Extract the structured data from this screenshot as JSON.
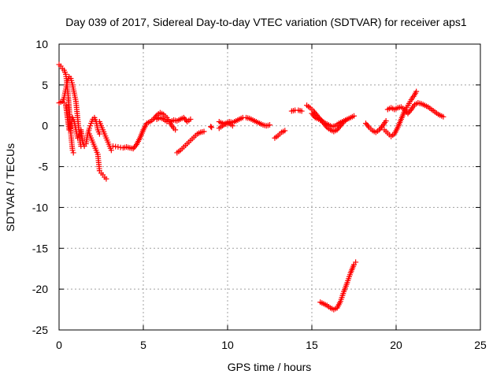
{
  "chart_data": {
    "type": "scatter",
    "title": "Day 039 of 2017, Sidereal Day-to-day VTEC variation (SDTVAR) for receiver aps1",
    "xlabel": "GPS time / hours",
    "ylabel": "SDTVAR / TECUs",
    "xlim": [
      0,
      25
    ],
    "ylim": [
      -25,
      10
    ],
    "xticks": [
      0,
      5,
      10,
      15,
      20,
      25
    ],
    "yticks": [
      10,
      5,
      0,
      -5,
      -10,
      -15,
      -20,
      -25
    ],
    "xtick_labels": [
      "0",
      "5",
      "10",
      "15",
      "20",
      "25"
    ],
    "ytick_labels": [
      "10",
      "5",
      "0",
      "-5",
      "-10",
      "-15",
      "-20",
      "-25"
    ],
    "grid": true,
    "marker": "plus",
    "color": "#ff0000",
    "series": [
      {
        "name": "aps1",
        "segments": [
          [
            [
              0.0,
              7.5
            ],
            [
              0.1,
              7.3
            ],
            [
              0.2,
              7.0
            ],
            [
              0.3,
              6.8
            ],
            [
              0.4,
              6.3
            ],
            [
              0.45,
              5.5
            ],
            [
              0.5,
              4.5
            ],
            [
              0.55,
              3.5
            ],
            [
              0.6,
              2.0
            ],
            [
              0.65,
              0.5
            ],
            [
              0.7,
              -1.0
            ],
            [
              0.75,
              -2.0
            ],
            [
              0.8,
              -3.0
            ],
            [
              0.85,
              -3.3
            ]
          ],
          [
            [
              0.0,
              2.8
            ],
            [
              0.1,
              2.9
            ],
            [
              0.2,
              3.0
            ],
            [
              0.3,
              3.5
            ],
            [
              0.4,
              4.5
            ],
            [
              0.5,
              5.5
            ],
            [
              0.6,
              6.0
            ],
            [
              0.7,
              5.8
            ],
            [
              0.8,
              5.0
            ],
            [
              0.9,
              4.0
            ],
            [
              1.0,
              3.0
            ],
            [
              1.05,
              2.0
            ],
            [
              1.1,
              1.0
            ],
            [
              1.15,
              0.0
            ],
            [
              1.2,
              -1.0
            ],
            [
              1.25,
              -2.0
            ],
            [
              1.3,
              -2.5
            ]
          ],
          [
            [
              0.3,
              2.8
            ],
            [
              0.4,
              2.5
            ],
            [
              0.5,
              1.0
            ],
            [
              0.6,
              -0.5
            ],
            [
              0.7,
              0.0
            ],
            [
              0.8,
              1.0
            ],
            [
              0.9,
              0.5
            ],
            [
              1.0,
              -0.5
            ],
            [
              1.1,
              -1.5
            ],
            [
              1.2,
              -1.0
            ],
            [
              1.3,
              -0.5
            ],
            [
              1.4,
              -2.0
            ],
            [
              1.5,
              -2.5
            ],
            [
              1.6,
              -2.2
            ],
            [
              1.7,
              -1.0
            ],
            [
              1.8,
              -0.3
            ],
            [
              1.9,
              0.3
            ],
            [
              2.0,
              0.8
            ],
            [
              2.1,
              1.0
            ],
            [
              2.2,
              0.5
            ],
            [
              2.3,
              -0.5
            ],
            [
              2.4,
              -1.0
            ]
          ],
          [
            [
              1.8,
              -1.0
            ],
            [
              1.9,
              -1.5
            ],
            [
              2.0,
              -2.0
            ],
            [
              2.1,
              -2.5
            ],
            [
              2.2,
              -3.0
            ],
            [
              2.3,
              -3.5
            ],
            [
              2.35,
              -4.5
            ],
            [
              2.4,
              -5.5
            ],
            [
              2.5,
              -5.8
            ],
            [
              2.6,
              -6.0
            ],
            [
              2.7,
              -6.3
            ],
            [
              2.8,
              -6.5
            ]
          ],
          [
            [
              2.4,
              0.5
            ],
            [
              2.5,
              0.0
            ],
            [
              2.6,
              -0.5
            ],
            [
              2.7,
              -1.0
            ],
            [
              2.8,
              -1.5
            ],
            [
              2.9,
              -2.0
            ],
            [
              3.0,
              -2.5
            ],
            [
              3.1,
              -3.0
            ]
          ],
          [
            [
              3.2,
              -2.5
            ],
            [
              3.5,
              -2.6
            ],
            [
              3.8,
              -2.7
            ],
            [
              4.0,
              -2.6
            ],
            [
              4.2,
              -2.7
            ],
            [
              4.4,
              -2.8
            ],
            [
              4.6,
              -2.3
            ],
            [
              4.8,
              -1.5
            ],
            [
              5.0,
              -0.5
            ],
            [
              5.2,
              0.3
            ],
            [
              5.4,
              0.5
            ],
            [
              5.6,
              0.8
            ],
            [
              5.8,
              1.3
            ],
            [
              6.0,
              1.6
            ],
            [
              6.2,
              1.4
            ],
            [
              6.4,
              1.0
            ],
            [
              6.6,
              0.3
            ],
            [
              6.8,
              -0.3
            ],
            [
              6.9,
              -0.5
            ]
          ],
          [
            [
              5.8,
              0.8
            ],
            [
              6.0,
              1.0
            ],
            [
              6.2,
              0.8
            ],
            [
              6.4,
              0.5
            ],
            [
              6.6,
              0.5
            ],
            [
              6.8,
              0.7
            ],
            [
              7.0,
              0.6
            ],
            [
              7.2,
              0.8
            ],
            [
              7.4,
              1.0
            ],
            [
              7.6,
              0.5
            ],
            [
              7.8,
              0.8
            ]
          ],
          [
            [
              7.0,
              -3.3
            ],
            [
              7.2,
              -3.0
            ],
            [
              7.4,
              -2.6
            ],
            [
              7.6,
              -2.2
            ],
            [
              7.8,
              -1.8
            ],
            [
              8.0,
              -1.4
            ],
            [
              8.2,
              -1.0
            ],
            [
              8.4,
              -0.8
            ],
            [
              8.6,
              -0.7
            ]
          ],
          [
            [
              9.0,
              -0.1
            ],
            [
              9.05,
              -0.2
            ]
          ],
          [
            [
              9.5,
              -0.3
            ],
            [
              9.7,
              0.0
            ],
            [
              9.9,
              0.3
            ],
            [
              10.1,
              0.5
            ],
            [
              10.3,
              0.4
            ],
            [
              10.5,
              0.6
            ],
            [
              10.7,
              0.8
            ],
            [
              10.9,
              1.0
            ],
            [
              11.1,
              1.0
            ],
            [
              11.3,
              0.9
            ],
            [
              11.5,
              0.7
            ],
            [
              11.7,
              0.5
            ],
            [
              11.9,
              0.3
            ],
            [
              12.1,
              0.1
            ],
            [
              12.3,
              0.0
            ],
            [
              12.5,
              0.1
            ]
          ],
          [
            [
              9.5,
              0.5
            ],
            [
              9.7,
              0.3
            ],
            [
              9.9,
              0.2
            ],
            [
              10.1,
              0.3
            ],
            [
              10.3,
              0.0
            ]
          ],
          [
            [
              12.8,
              -1.5
            ],
            [
              13.0,
              -1.2
            ],
            [
              13.2,
              -0.8
            ],
            [
              13.4,
              -0.6
            ]
          ],
          [
            [
              13.8,
              1.8
            ],
            [
              14.0,
              1.9
            ],
            [
              14.2,
              1.9
            ],
            [
              14.4,
              1.8
            ]
          ],
          [
            [
              14.7,
              2.5
            ],
            [
              14.9,
              2.2
            ],
            [
              15.1,
              1.8
            ],
            [
              15.3,
              1.3
            ],
            [
              15.5,
              0.8
            ],
            [
              15.7,
              0.3
            ],
            [
              15.9,
              -0.2
            ],
            [
              16.1,
              -0.5
            ],
            [
              16.3,
              -0.7
            ],
            [
              16.5,
              -0.5
            ],
            [
              16.7,
              0.0
            ],
            [
              16.9,
              0.5
            ],
            [
              17.1,
              0.8
            ],
            [
              17.3,
              1.0
            ],
            [
              17.5,
              1.2
            ]
          ],
          [
            [
              15.0,
              1.5
            ],
            [
              15.2,
              1.0
            ],
            [
              15.4,
              0.8
            ],
            [
              15.6,
              0.6
            ],
            [
              15.8,
              0.3
            ],
            [
              16.0,
              0.1
            ],
            [
              16.2,
              -0.1
            ],
            [
              16.4,
              0.0
            ],
            [
              16.6,
              0.3
            ],
            [
              16.8,
              0.5
            ],
            [
              17.0,
              0.7
            ]
          ],
          [
            [
              15.5,
              -21.6
            ],
            [
              15.7,
              -21.8
            ],
            [
              15.9,
              -22.0
            ],
            [
              16.1,
              -22.3
            ],
            [
              16.3,
              -22.5
            ],
            [
              16.5,
              -22.3
            ],
            [
              16.7,
              -21.5
            ],
            [
              16.9,
              -20.3
            ],
            [
              17.1,
              -19.2
            ],
            [
              17.3,
              -18.0
            ],
            [
              17.5,
              -17.0
            ],
            [
              17.6,
              -16.7
            ]
          ],
          [
            [
              18.2,
              0.3
            ],
            [
              18.4,
              -0.2
            ],
            [
              18.6,
              -0.6
            ],
            [
              18.8,
              -0.8
            ],
            [
              19.0,
              -0.5
            ],
            [
              19.2,
              0.0
            ],
            [
              19.4,
              0.6
            ]
          ],
          [
            [
              19.3,
              -0.5
            ],
            [
              19.5,
              -0.9
            ],
            [
              19.7,
              -1.3
            ],
            [
              19.9,
              -1.0
            ],
            [
              20.1,
              -0.2
            ],
            [
              20.3,
              0.8
            ],
            [
              20.5,
              1.8
            ],
            [
              20.7,
              2.5
            ],
            [
              20.9,
              3.2
            ],
            [
              21.1,
              3.8
            ],
            [
              21.2,
              4.2
            ]
          ],
          [
            [
              19.5,
              2.0
            ],
            [
              19.7,
              2.2
            ],
            [
              19.9,
              2.0
            ],
            [
              20.1,
              2.2
            ],
            [
              20.3,
              2.3
            ],
            [
              20.5,
              2.0
            ],
            [
              20.7,
              1.5
            ],
            [
              20.9,
              2.0
            ],
            [
              21.1,
              2.6
            ],
            [
              21.3,
              2.8
            ],
            [
              21.5,
              2.7
            ],
            [
              21.7,
              2.5
            ],
            [
              21.9,
              2.3
            ],
            [
              22.1,
              2.0
            ],
            [
              22.3,
              1.7
            ],
            [
              22.5,
              1.4
            ],
            [
              22.7,
              1.2
            ],
            [
              22.8,
              1.1
            ]
          ]
        ]
      }
    ]
  }
}
